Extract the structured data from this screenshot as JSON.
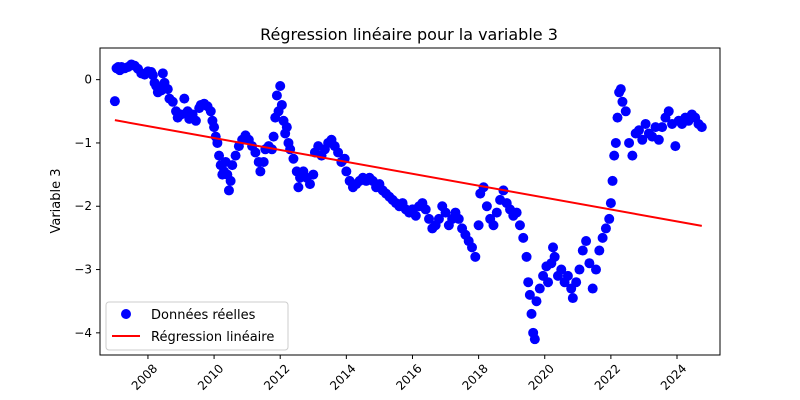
{
  "chart_data": {
    "type": "scatter",
    "title": "Régression linéaire pour la variable 3",
    "xlabel": "",
    "ylabel": "Variable 3",
    "xlim": [
      2006.55,
      2025.3
    ],
    "ylim": [
      -4.35,
      0.5
    ],
    "x_ticks": [
      2008,
      2010,
      2012,
      2014,
      2016,
      2018,
      2020,
      2022,
      2024
    ],
    "y_ticks": [
      0,
      -1,
      -2,
      -3,
      -4
    ],
    "y_tick_labels": [
      "0",
      "−1",
      "−2",
      "−3",
      "−4"
    ],
    "grid": false,
    "legend_position": "lower-left",
    "series": [
      {
        "name": "Données réelles",
        "kind": "scatter",
        "color": "#0000ff",
        "points": [
          [
            2007.0,
            -0.34
          ],
          [
            2007.05,
            0.18
          ],
          [
            2007.1,
            0.2
          ],
          [
            2007.15,
            0.15
          ],
          [
            2007.2,
            0.2
          ],
          [
            2007.3,
            0.18
          ],
          [
            2007.4,
            0.2
          ],
          [
            2007.5,
            0.24
          ],
          [
            2007.6,
            0.22
          ],
          [
            2007.7,
            0.17
          ],
          [
            2007.8,
            0.1
          ],
          [
            2007.9,
            0.08
          ],
          [
            2008.0,
            0.13
          ],
          [
            2008.1,
            0.12
          ],
          [
            2008.15,
            0.07
          ],
          [
            2008.2,
            -0.05
          ],
          [
            2008.25,
            -0.1
          ],
          [
            2008.3,
            -0.2
          ],
          [
            2008.4,
            -0.17
          ],
          [
            2008.45,
            0.1
          ],
          [
            2008.5,
            -0.05
          ],
          [
            2008.6,
            -0.15
          ],
          [
            2008.65,
            -0.3
          ],
          [
            2008.75,
            -0.35
          ],
          [
            2008.85,
            -0.5
          ],
          [
            2008.9,
            -0.6
          ],
          [
            2009.0,
            -0.55
          ],
          [
            2009.1,
            -0.3
          ],
          [
            2009.2,
            -0.5
          ],
          [
            2009.25,
            -0.62
          ],
          [
            2009.35,
            -0.55
          ],
          [
            2009.45,
            -0.65
          ],
          [
            2009.55,
            -0.45
          ],
          [
            2009.6,
            -0.4
          ],
          [
            2009.7,
            -0.38
          ],
          [
            2009.8,
            -0.42
          ],
          [
            2009.9,
            -0.5
          ],
          [
            2009.95,
            -0.65
          ],
          [
            2010.0,
            -0.75
          ],
          [
            2010.05,
            -0.9
          ],
          [
            2010.1,
            -1.0
          ],
          [
            2010.15,
            -1.2
          ],
          [
            2010.2,
            -1.35
          ],
          [
            2010.25,
            -1.5
          ],
          [
            2010.3,
            -1.45
          ],
          [
            2010.35,
            -1.3
          ],
          [
            2010.4,
            -1.5
          ],
          [
            2010.45,
            -1.75
          ],
          [
            2010.5,
            -1.6
          ],
          [
            2010.55,
            -1.35
          ],
          [
            2010.65,
            -1.2
          ],
          [
            2010.75,
            -1.05
          ],
          [
            2010.85,
            -0.95
          ],
          [
            2010.95,
            -0.88
          ],
          [
            2011.05,
            -0.95
          ],
          [
            2011.15,
            -1.05
          ],
          [
            2011.25,
            -1.15
          ],
          [
            2011.35,
            -1.3
          ],
          [
            2011.4,
            -1.45
          ],
          [
            2011.5,
            -1.3
          ],
          [
            2011.55,
            -1.1
          ],
          [
            2011.65,
            -1.05
          ],
          [
            2011.75,
            -1.1
          ],
          [
            2011.8,
            -0.9
          ],
          [
            2011.85,
            -0.6
          ],
          [
            2011.9,
            -0.25
          ],
          [
            2011.95,
            -0.5
          ],
          [
            2012.0,
            -0.1
          ],
          [
            2012.05,
            -0.4
          ],
          [
            2012.1,
            -0.65
          ],
          [
            2012.15,
            -0.85
          ],
          [
            2012.2,
            -0.75
          ],
          [
            2012.25,
            -1.0
          ],
          [
            2012.3,
            -1.1
          ],
          [
            2012.4,
            -1.25
          ],
          [
            2012.5,
            -1.45
          ],
          [
            2012.55,
            -1.7
          ],
          [
            2012.6,
            -1.55
          ],
          [
            2012.7,
            -1.45
          ],
          [
            2012.8,
            -1.55
          ],
          [
            2012.9,
            -1.65
          ],
          [
            2013.0,
            -1.5
          ],
          [
            2013.05,
            -1.15
          ],
          [
            2013.15,
            -1.05
          ],
          [
            2013.25,
            -1.2
          ],
          [
            2013.35,
            -1.1
          ],
          [
            2013.45,
            -1.0
          ],
          [
            2013.55,
            -0.95
          ],
          [
            2013.65,
            -1.05
          ],
          [
            2013.75,
            -1.15
          ],
          [
            2013.85,
            -1.3
          ],
          [
            2013.95,
            -1.25
          ],
          [
            2014.0,
            -1.45
          ],
          [
            2014.1,
            -1.6
          ],
          [
            2014.2,
            -1.7
          ],
          [
            2014.3,
            -1.65
          ],
          [
            2014.4,
            -1.6
          ],
          [
            2014.5,
            -1.55
          ],
          [
            2014.6,
            -1.6
          ],
          [
            2014.7,
            -1.55
          ],
          [
            2014.8,
            -1.6
          ],
          [
            2014.9,
            -1.7
          ],
          [
            2015.0,
            -1.65
          ],
          [
            2015.1,
            -1.75
          ],
          [
            2015.2,
            -1.8
          ],
          [
            2015.3,
            -1.85
          ],
          [
            2015.4,
            -1.9
          ],
          [
            2015.5,
            -1.95
          ],
          [
            2015.6,
            -2.0
          ],
          [
            2015.7,
            -1.95
          ],
          [
            2015.8,
            -2.05
          ],
          [
            2015.9,
            -2.1
          ],
          [
            2016.0,
            -2.05
          ],
          [
            2016.1,
            -2.15
          ],
          [
            2016.2,
            -2.0
          ],
          [
            2016.3,
            -1.95
          ],
          [
            2016.4,
            -2.05
          ],
          [
            2016.5,
            -2.2
          ],
          [
            2016.6,
            -2.35
          ],
          [
            2016.7,
            -2.3
          ],
          [
            2016.8,
            -2.2
          ],
          [
            2016.9,
            -2.0
          ],
          [
            2017.0,
            -2.1
          ],
          [
            2017.1,
            -2.3
          ],
          [
            2017.2,
            -2.2
          ],
          [
            2017.3,
            -2.1
          ],
          [
            2017.4,
            -2.2
          ],
          [
            2017.5,
            -2.35
          ],
          [
            2017.6,
            -2.45
          ],
          [
            2017.7,
            -2.55
          ],
          [
            2017.8,
            -2.65
          ],
          [
            2017.9,
            -2.8
          ],
          [
            2018.0,
            -2.3
          ],
          [
            2018.05,
            -1.8
          ],
          [
            2018.15,
            -1.7
          ],
          [
            2018.25,
            -2.0
          ],
          [
            2018.35,
            -2.2
          ],
          [
            2018.45,
            -2.3
          ],
          [
            2018.55,
            -2.1
          ],
          [
            2018.65,
            -1.9
          ],
          [
            2018.75,
            -1.75
          ],
          [
            2018.85,
            -1.95
          ],
          [
            2018.95,
            -2.05
          ],
          [
            2019.05,
            -2.15
          ],
          [
            2019.15,
            -2.1
          ],
          [
            2019.25,
            -2.3
          ],
          [
            2019.35,
            -2.5
          ],
          [
            2019.45,
            -2.8
          ],
          [
            2019.5,
            -3.2
          ],
          [
            2019.55,
            -3.4
          ],
          [
            2019.6,
            -3.7
          ],
          [
            2019.65,
            -4.0
          ],
          [
            2019.7,
            -4.1
          ],
          [
            2019.75,
            -3.5
          ],
          [
            2019.85,
            -3.3
          ],
          [
            2019.95,
            -3.1
          ],
          [
            2020.05,
            -2.95
          ],
          [
            2020.1,
            -3.2
          ],
          [
            2020.2,
            -2.9
          ],
          [
            2020.25,
            -2.65
          ],
          [
            2020.3,
            -2.8
          ],
          [
            2020.4,
            -3.1
          ],
          [
            2020.5,
            -3.0
          ],
          [
            2020.6,
            -3.2
          ],
          [
            2020.7,
            -3.1
          ],
          [
            2020.8,
            -3.3
          ],
          [
            2020.85,
            -3.45
          ],
          [
            2020.95,
            -3.2
          ],
          [
            2021.05,
            -3.0
          ],
          [
            2021.15,
            -2.7
          ],
          [
            2021.25,
            -2.55
          ],
          [
            2021.35,
            -2.9
          ],
          [
            2021.45,
            -3.3
          ],
          [
            2021.55,
            -3.0
          ],
          [
            2021.65,
            -2.7
          ],
          [
            2021.75,
            -2.5
          ],
          [
            2021.85,
            -2.35
          ],
          [
            2021.95,
            -2.2
          ],
          [
            2022.0,
            -1.95
          ],
          [
            2022.05,
            -1.6
          ],
          [
            2022.1,
            -1.2
          ],
          [
            2022.15,
            -1.0
          ],
          [
            2022.2,
            -0.6
          ],
          [
            2022.25,
            -0.2
          ],
          [
            2022.3,
            -0.15
          ],
          [
            2022.35,
            -0.35
          ],
          [
            2022.45,
            -0.5
          ],
          [
            2022.55,
            -1.0
          ],
          [
            2022.65,
            -1.2
          ],
          [
            2022.75,
            -0.85
          ],
          [
            2022.85,
            -0.8
          ],
          [
            2022.95,
            -0.95
          ],
          [
            2023.05,
            -0.7
          ],
          [
            2023.15,
            -0.85
          ],
          [
            2023.25,
            -0.9
          ],
          [
            2023.35,
            -0.75
          ],
          [
            2023.45,
            -0.95
          ],
          [
            2023.55,
            -0.75
          ],
          [
            2023.65,
            -0.6
          ],
          [
            2023.75,
            -0.5
          ],
          [
            2023.85,
            -0.7
          ],
          [
            2023.95,
            -1.05
          ],
          [
            2024.05,
            -0.65
          ],
          [
            2024.15,
            -0.7
          ],
          [
            2024.25,
            -0.6
          ],
          [
            2024.35,
            -0.65
          ],
          [
            2024.45,
            -0.55
          ],
          [
            2024.55,
            -0.6
          ],
          [
            2024.65,
            -0.7
          ],
          [
            2024.75,
            -0.75
          ]
        ]
      },
      {
        "name": "Régression linéaire",
        "kind": "line",
        "color": "#ff0000",
        "points": [
          [
            2007.0,
            -0.64
          ],
          [
            2024.75,
            -2.31
          ]
        ]
      }
    ]
  }
}
